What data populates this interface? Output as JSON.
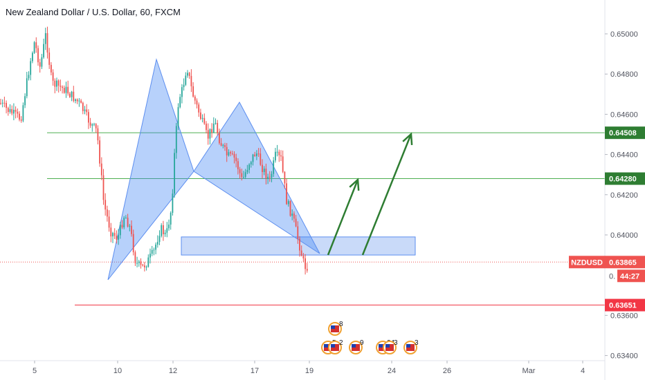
{
  "title": "New Zealand Dollar / U.S. Dollar, 60, FXCM",
  "chart_data": {
    "type": "candlestick",
    "symbol": "NZDUSD",
    "interval": "60",
    "source": "FXCM",
    "y_ticks": [
      "0.65000",
      "0.64800",
      "0.64600",
      "0.64400",
      "0.64200",
      "0.64000",
      "0.63600",
      "0.63400"
    ],
    "y_range": [
      0.634,
      0.651
    ],
    "x_ticks": [
      "5",
      "10",
      "12",
      "17",
      "19",
      "24",
      "26",
      "Mar",
      "4"
    ],
    "price_tags": [
      {
        "label": "",
        "value": "0.64508",
        "color": "#2e7d32"
      },
      {
        "label": "",
        "value": "0.64280",
        "color": "#2e7d32"
      },
      {
        "label": "NZDUSD",
        "value": "0.63865",
        "color": "#ef5350"
      },
      {
        "label": "",
        "value": "0.63651",
        "color": "#f23645"
      }
    ],
    "countdown": "44:27",
    "countdown_partial_tick": "0.",
    "horizontal_lines": [
      {
        "price": 0.64508,
        "color": "#4caf50"
      },
      {
        "price": 0.6428,
        "color": "#4caf50"
      },
      {
        "price": 0.63651,
        "color": "#f23645"
      }
    ],
    "current_price_line": {
      "price": 0.63865,
      "color": "#ef5350",
      "style": "dotted"
    },
    "support_zone": {
      "from": 0.639,
      "to": 0.6399
    },
    "pattern": "harmonic (blue triangles)",
    "projection_arrows": [
      {
        "target": 0.6428,
        "color": "#2e7d32"
      },
      {
        "target": 0.64508,
        "color": "#2e7d32"
      }
    ],
    "event_markers": [
      "8",
      "5",
      "2",
      "9",
      "24",
      "3",
      "3"
    ],
    "candle_colors": {
      "up": "#26a69a",
      "down": "#ef5350"
    }
  }
}
